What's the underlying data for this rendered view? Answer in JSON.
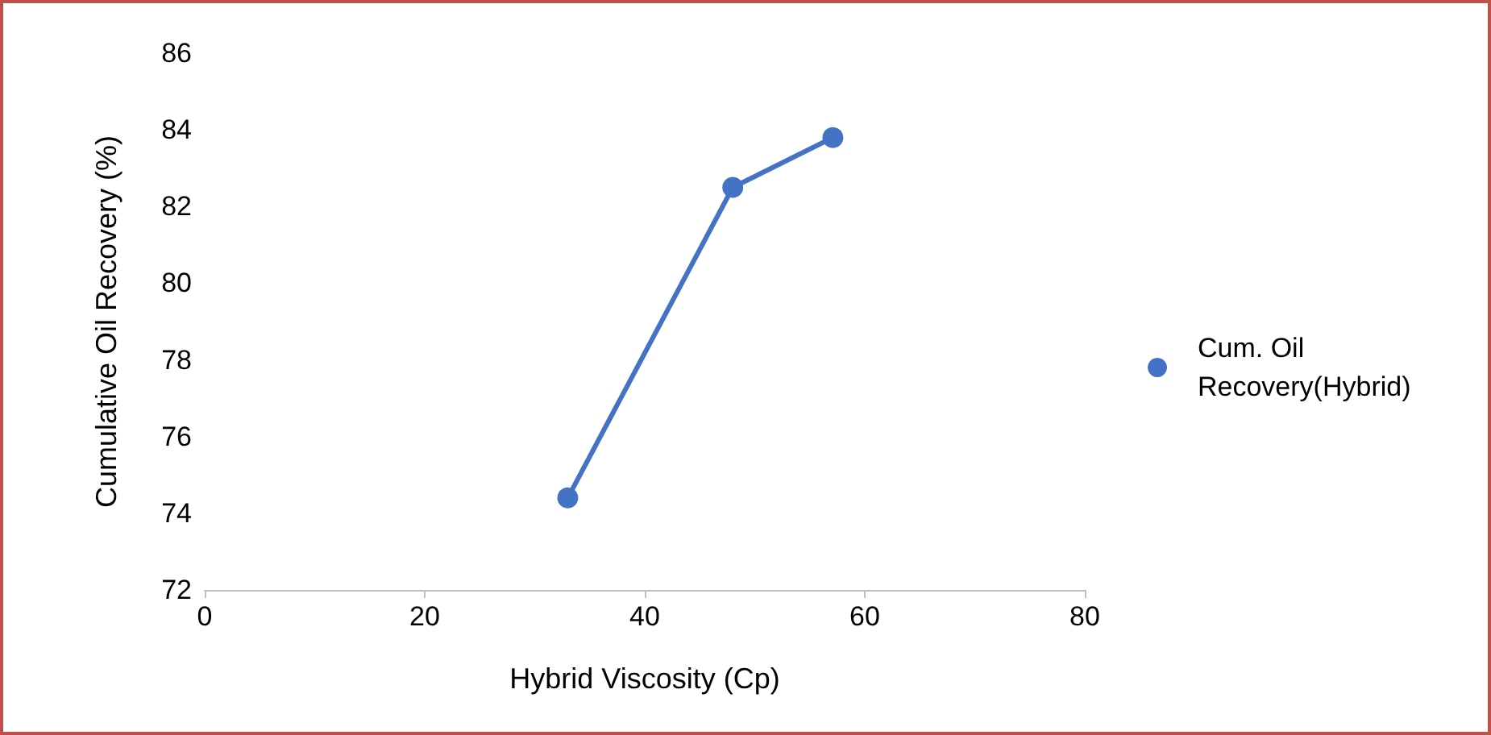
{
  "chart_data": {
    "type": "line",
    "xlabel": "Hybrid Viscosity (Cp)",
    "ylabel": "Cumulative Oil Recovery (%)",
    "x": [
      33,
      48,
      57.1
    ],
    "series": [
      {
        "name": "Cum. Oil Recovery(Hybrid)",
        "color": "#4472c4",
        "values": [
          74.4,
          82.5,
          83.8
        ]
      }
    ],
    "xlim": [
      0,
      80
    ],
    "xticks": [
      0,
      20,
      40,
      60,
      80
    ],
    "ylim": [
      72,
      86
    ],
    "yticks": [
      72,
      74,
      76,
      78,
      80,
      82,
      84,
      86
    ],
    "grid": false,
    "legend": "right",
    "marker": "circle",
    "line_style": "solid"
  }
}
